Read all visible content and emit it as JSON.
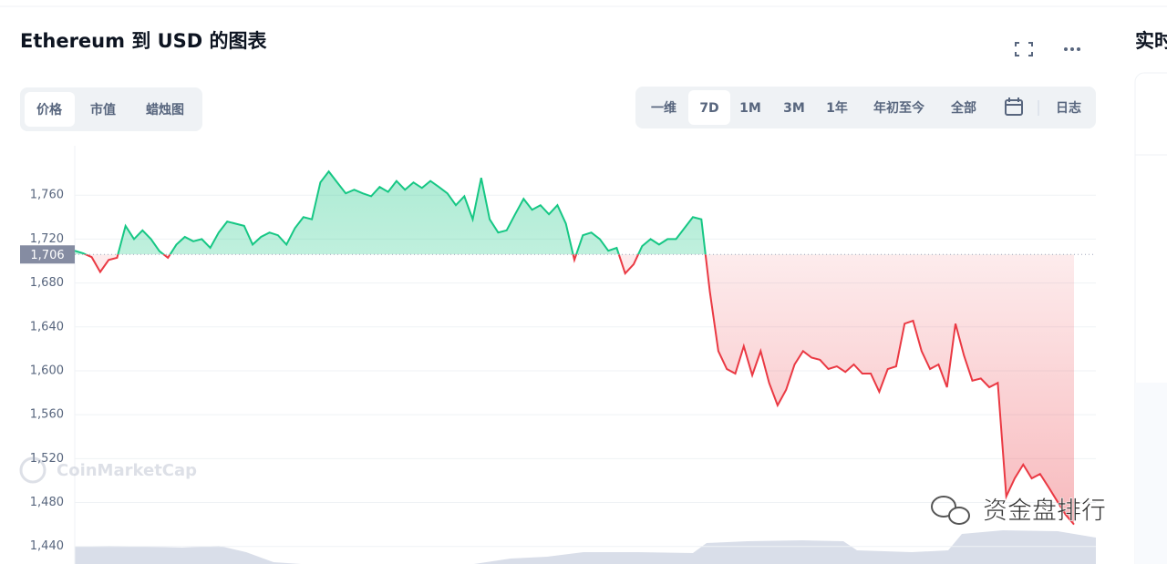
{
  "header": {
    "title": "Ethereum 到 USD 的图表",
    "side_title": "实时"
  },
  "tabs": {
    "left": [
      "价格",
      "市值",
      "蜡烛图"
    ],
    "left_active": 0,
    "right": [
      "一维",
      "7D",
      "1M",
      "3M",
      "1年",
      "年初至今",
      "全部",
      "日志"
    ],
    "right_active": 1
  },
  "watermarks": [
    "CoinMarketCap",
    "资金盘排行"
  ],
  "chart_data": {
    "type": "line",
    "values": [
      1709.4,
      1707,
      1703.6,
      1690,
      1701,
      1703,
      1732,
      1720,
      1728,
      1720,
      1709,
      1703,
      1715,
      1722,
      1718,
      1720,
      1712,
      1726,
      1736,
      1734,
      1732,
      1715,
      1722,
      1726,
      1723.5,
      1715,
      1730,
      1740,
      1738,
      1771.6,
      1781.6,
      1771.6,
      1761.7,
      1765,
      1761.7,
      1759,
      1767.5,
      1763,
      1773,
      1765,
      1771.6,
      1766.6,
      1773,
      1767.5,
      1761.7,
      1750.9,
      1759,
      1738,
      1775.8,
      1738,
      1726,
      1728,
      1742.6,
      1756.7,
      1746.7,
      1750.9,
      1742.6,
      1750.9,
      1734,
      1701,
      1723.5,
      1726,
      1720,
      1709.4,
      1712,
      1688.7,
      1697,
      1713.6,
      1720,
      1715,
      1720,
      1720,
      1730,
      1740,
      1738,
      1672,
      1618,
      1601.6,
      1597.5,
      1622.4,
      1596,
      1618,
      1589,
      1568.5,
      1582.6,
      1605.8,
      1618,
      1612,
      1610,
      1601.6,
      1604,
      1599,
      1605.8,
      1597.5,
      1597.5,
      1580.9,
      1601.6,
      1604,
      1643,
      1645.6,
      1618,
      1601.6,
      1605.8,
      1585,
      1643,
      1614,
      1591,
      1593,
      1585,
      1589,
      1485.5,
      1502,
      1514.6,
      1502,
      1506,
      1494,
      1481.4,
      1469,
      1460
    ],
    "color_up": "#16c784",
    "color_down": "#ea3943",
    "baseline": {
      "value": 1706,
      "label": "1,706"
    },
    "ylim": [
      1424,
      1805
    ],
    "yticks": [
      {
        "value": 1440,
        "label": "1,440"
      },
      {
        "value": 1480,
        "label": "1,480"
      },
      {
        "value": 1520,
        "label": "1,520"
      },
      {
        "value": 1560,
        "label": "1,560"
      },
      {
        "value": 1600,
        "label": "1,600"
      },
      {
        "value": 1640,
        "label": "1,640"
      },
      {
        "value": 1680,
        "label": "1,680"
      },
      {
        "value": 1720,
        "label": "1,720"
      },
      {
        "value": 1760,
        "label": "1,760"
      }
    ],
    "grid": true
  }
}
